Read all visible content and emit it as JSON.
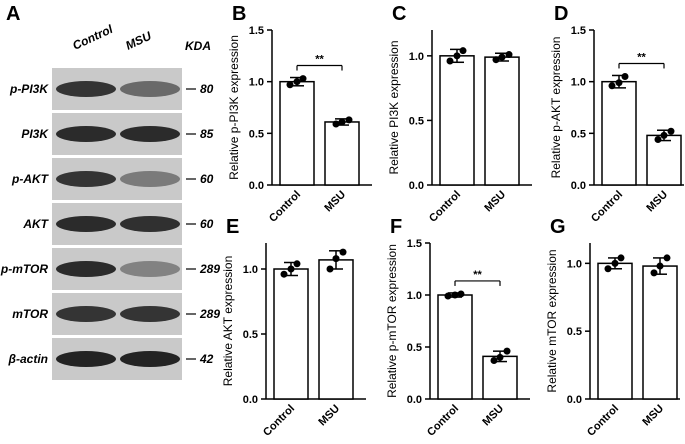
{
  "blot": {
    "panel": "A",
    "columns": [
      "Control",
      "MSU"
    ],
    "unit": "KDA",
    "rows": [
      {
        "label": "p-PI3K",
        "kda": 80
      },
      {
        "label": "PI3K",
        "kda": 85
      },
      {
        "label": "p-AKT",
        "kda": 60
      },
      {
        "label": "AKT",
        "kda": 60
      },
      {
        "label": "p-mTOR",
        "kda": 289
      },
      {
        "label": "mTOR",
        "kda": 289
      },
      {
        "label": "β-actin",
        "kda": 42
      }
    ]
  },
  "chart_data": [
    {
      "type": "bar",
      "panel": "B",
      "ylabel": "Relative p-PI3K expression",
      "categories": [
        "Control",
        "MSU"
      ],
      "values": [
        1.0,
        0.61
      ],
      "errors": [
        0.04,
        0.03
      ],
      "points": [
        [
          0.97,
          1.03,
          1.0
        ],
        [
          0.59,
          0.63,
          0.61
        ]
      ],
      "significance": "**",
      "ylim": [
        0,
        1.5
      ],
      "yticks": [
        {
          "value": 0,
          "label": "0.0"
        },
        {
          "value": 0.5,
          "label": "0.5"
        },
        {
          "value": 1,
          "label": "1.0"
        },
        {
          "value": 1.5,
          "label": "1.5"
        }
      ]
    },
    {
      "type": "bar",
      "panel": "C",
      "ylabel": "Relative PI3K expression",
      "categories": [
        "Control",
        "MSU"
      ],
      "values": [
        1.0,
        0.99
      ],
      "errors": [
        0.05,
        0.03
      ],
      "points": [
        [
          0.96,
          1.04,
          1.0
        ],
        [
          0.97,
          1.01,
          0.99
        ]
      ],
      "ylim": [
        0,
        1.2
      ],
      "yticks": [
        {
          "value": 0,
          "label": "0.0"
        },
        {
          "value": 0.5,
          "label": "0.5"
        },
        {
          "value": 1,
          "label": "1.0"
        }
      ]
    },
    {
      "type": "bar",
      "panel": "D",
      "ylabel": "Relative p-AKT expression",
      "categories": [
        "Control",
        "MSU"
      ],
      "values": [
        1.0,
        0.48
      ],
      "errors": [
        0.06,
        0.05
      ],
      "points": [
        [
          0.96,
          1.05,
          0.99
        ],
        [
          0.44,
          0.52,
          0.48
        ]
      ],
      "significance": "**",
      "ylim": [
        0,
        1.5
      ],
      "yticks": [
        {
          "value": 0,
          "label": "0.0"
        },
        {
          "value": 0.5,
          "label": "0.5"
        },
        {
          "value": 1,
          "label": "1.0"
        },
        {
          "value": 1.5,
          "label": "1.5"
        }
      ]
    },
    {
      "type": "bar",
      "panel": "E",
      "ylabel": "Relative AKT expression",
      "categories": [
        "Control",
        "MSU"
      ],
      "values": [
        1.0,
        1.07
      ],
      "errors": [
        0.05,
        0.07
      ],
      "points": [
        [
          0.96,
          1.04,
          1.0
        ],
        [
          1.0,
          1.13,
          1.08
        ]
      ],
      "ylim": [
        0,
        1.2
      ],
      "yticks": [
        {
          "value": 0,
          "label": "0.0"
        },
        {
          "value": 0.5,
          "label": "0.5"
        },
        {
          "value": 1,
          "label": "1.0"
        }
      ]
    },
    {
      "type": "bar",
      "panel": "F",
      "ylabel": "Relative p-mTOR expression",
      "categories": [
        "Control",
        "MSU"
      ],
      "values": [
        1.0,
        0.41
      ],
      "errors": [
        0.02,
        0.05
      ],
      "points": [
        [
          0.99,
          1.01,
          1.0
        ],
        [
          0.37,
          0.46,
          0.4
        ]
      ],
      "significance": "**",
      "ylim": [
        0,
        1.5
      ],
      "yticks": [
        {
          "value": 0,
          "label": "0.0"
        },
        {
          "value": 0.5,
          "label": "0.5"
        },
        {
          "value": 1,
          "label": "1.0"
        },
        {
          "value": 1.5,
          "label": "1.5"
        }
      ]
    },
    {
      "type": "bar",
      "panel": "G",
      "ylabel": "Relative mTOR expression",
      "categories": [
        "Control",
        "MSU"
      ],
      "values": [
        1.0,
        0.98
      ],
      "errors": [
        0.04,
        0.06
      ],
      "points": [
        [
          0.96,
          1.04,
          1.0
        ],
        [
          0.93,
          1.04,
          0.98
        ]
      ],
      "ylim": [
        0,
        1.15
      ],
      "yticks": [
        {
          "value": 0,
          "label": "0.0"
        },
        {
          "value": 0.5,
          "label": "0.5"
        },
        {
          "value": 1,
          "label": "1.0"
        }
      ]
    }
  ]
}
